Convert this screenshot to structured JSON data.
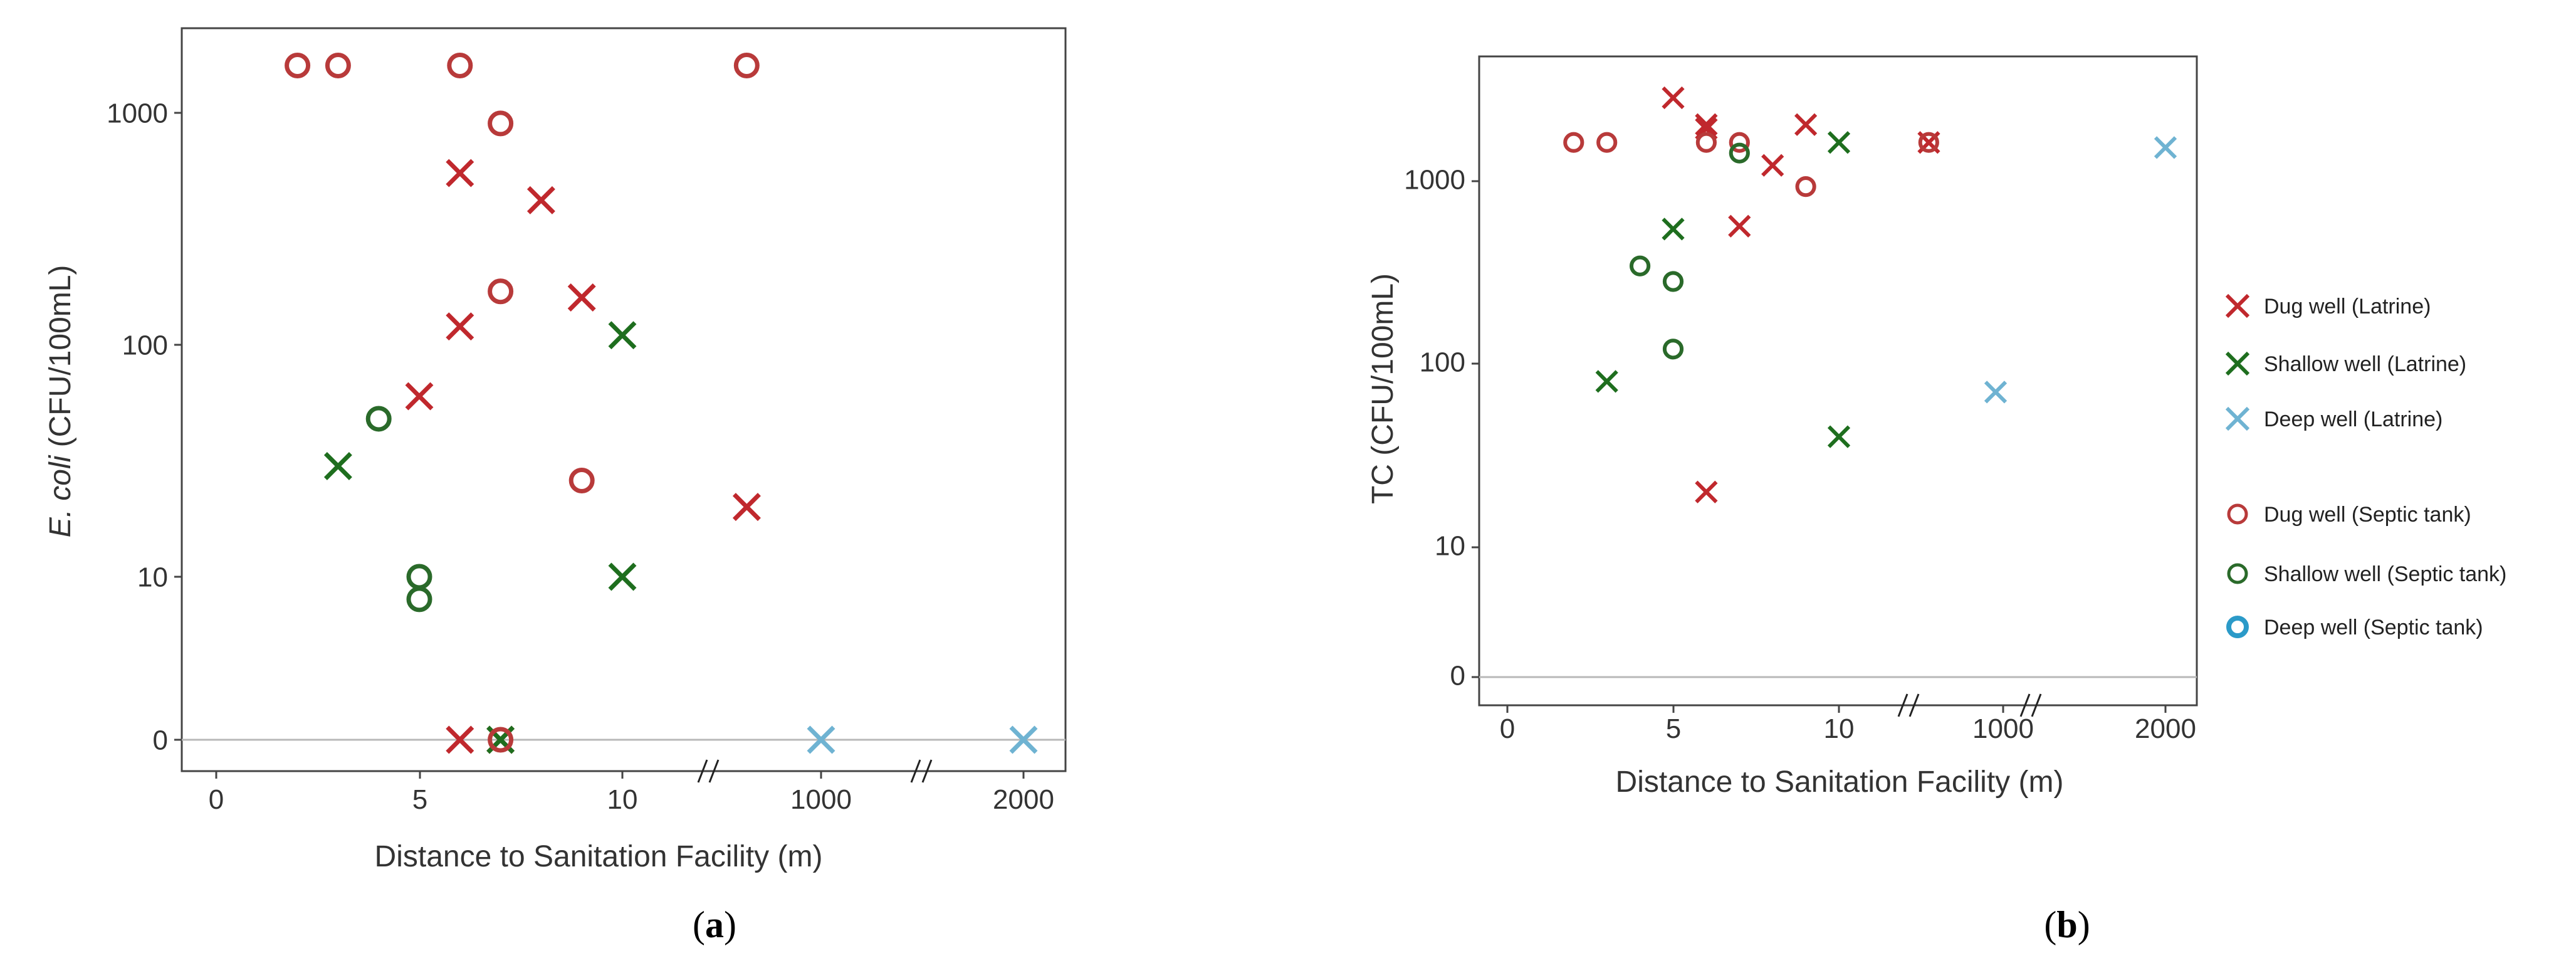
{
  "colors": {
    "dug_latrine": "#c0282d",
    "shallow_latrine": "#1e6e1e",
    "deep_latrine": "#6fb3d2",
    "dug_septic": "#b83a3a",
    "shallow_septic": "#2a6a2a",
    "deep_septic": "#2b9ac8",
    "zero_line": "#b8b8b8",
    "frame": "#444444"
  },
  "legend": [
    {
      "key": "dug_latrine",
      "marker": "x",
      "label": "Dug well (Latrine)"
    },
    {
      "key": "shallow_latrine",
      "marker": "x",
      "label": "Shallow well (Latrine)"
    },
    {
      "key": "deep_latrine",
      "marker": "x",
      "label": "Deep  well (Latrine)"
    },
    {
      "key": "dug_septic",
      "marker": "o",
      "label": "Dug well (Septic tank)"
    },
    {
      "key": "shallow_septic",
      "marker": "o",
      "label": "Shallow  well (Septic tank)"
    },
    {
      "key": "deep_septic",
      "marker": "o",
      "label": "Deep  well (Septic tank)"
    }
  ],
  "chart_data": [
    {
      "panel": "(a)",
      "type": "scatter",
      "xlabel": "Distance to Sanitation Facility (m)",
      "ylabel_italic": "E. coli",
      "ylabel_rest": " (CFU/100mL)",
      "x_ticks": [
        "0",
        "5",
        "10",
        "1000",
        "2000"
      ],
      "y_ticks": [
        "0",
        "10",
        "100",
        "1000"
      ],
      "y_scale": "log with separate zero baseline",
      "grid": false,
      "series": [
        {
          "key": "dug_latrine",
          "points": [
            {
              "x": 6,
              "y": 550
            },
            {
              "x": 8,
              "y": 420
            },
            {
              "x": 6,
              "y": 120
            },
            {
              "x": 9,
              "y": 160
            },
            {
              "x": 5,
              "y": 60
            },
            {
              "x": 12,
              "y": 20
            },
            {
              "x": 6,
              "y": 0
            },
            {
              "x": 7,
              "y": 0
            }
          ]
        },
        {
          "key": "shallow_latrine",
          "points": [
            {
              "x": 10,
              "y": 110
            },
            {
              "x": 3,
              "y": 30
            },
            {
              "x": 10,
              "y": 10
            },
            {
              "x": 7,
              "y": 0
            }
          ]
        },
        {
          "key": "deep_latrine",
          "points": [
            {
              "x": 1000,
              "y": 0
            },
            {
              "x": 2000,
              "y": 0
            }
          ]
        },
        {
          "key": "dug_septic",
          "points": [
            {
              "x": 2,
              "y": 1600
            },
            {
              "x": 3,
              "y": 1600
            },
            {
              "x": 6,
              "y": 1600
            },
            {
              "x": 11,
              "y": 1600
            },
            {
              "x": 7,
              "y": 900
            },
            {
              "x": 7,
              "y": 170
            },
            {
              "x": 9,
              "y": 26
            },
            {
              "x": 7,
              "y": 0
            }
          ]
        },
        {
          "key": "shallow_septic",
          "points": [
            {
              "x": 4,
              "y": 48
            },
            {
              "x": 5,
              "y": 10
            },
            {
              "x": 5,
              "y": 8
            }
          ]
        }
      ]
    },
    {
      "panel": "(b)",
      "type": "scatter",
      "xlabel": "Distance to Sanitation Facility (m)",
      "ylabel": "TC (CFU/100mL)",
      "x_ticks": [
        "0",
        "5",
        "10",
        "1000",
        "2000"
      ],
      "y_ticks": [
        "0",
        "10",
        "100",
        "1000"
      ],
      "y_scale": "log with separate zero baseline",
      "grid": false,
      "legend_position": "right",
      "series": [
        {
          "key": "dug_latrine",
          "points": [
            {
              "x": 5,
              "y": 2800
            },
            {
              "x": 6,
              "y": 2000
            },
            {
              "x": 6,
              "y": 1900
            },
            {
              "x": 9,
              "y": 2000
            },
            {
              "x": 12,
              "y": 1600
            },
            {
              "x": 8,
              "y": 1200
            },
            {
              "x": 7,
              "y": 560
            },
            {
              "x": 6,
              "y": 20
            }
          ]
        },
        {
          "key": "shallow_latrine",
          "points": [
            {
              "x": 10,
              "y": 1600
            },
            {
              "x": 5,
              "y": 540
            },
            {
              "x": 3,
              "y": 80
            },
            {
              "x": 10,
              "y": 40
            }
          ]
        },
        {
          "key": "deep_latrine",
          "points": [
            {
              "x": 2000,
              "y": 1500
            },
            {
              "x": 900,
              "y": 70
            }
          ]
        },
        {
          "key": "dug_septic",
          "points": [
            {
              "x": 2,
              "y": 1600
            },
            {
              "x": 3,
              "y": 1600
            },
            {
              "x": 6,
              "y": 1600
            },
            {
              "x": 7,
              "y": 1600
            },
            {
              "x": 11,
              "y": 1600
            },
            {
              "x": 9,
              "y": 920
            }
          ]
        },
        {
          "key": "shallow_septic",
          "points": [
            {
              "x": 7,
              "y": 1400
            },
            {
              "x": 4,
              "y": 340
            },
            {
              "x": 5,
              "y": 280
            },
            {
              "x": 5,
              "y": 120
            }
          ]
        }
      ]
    }
  ]
}
